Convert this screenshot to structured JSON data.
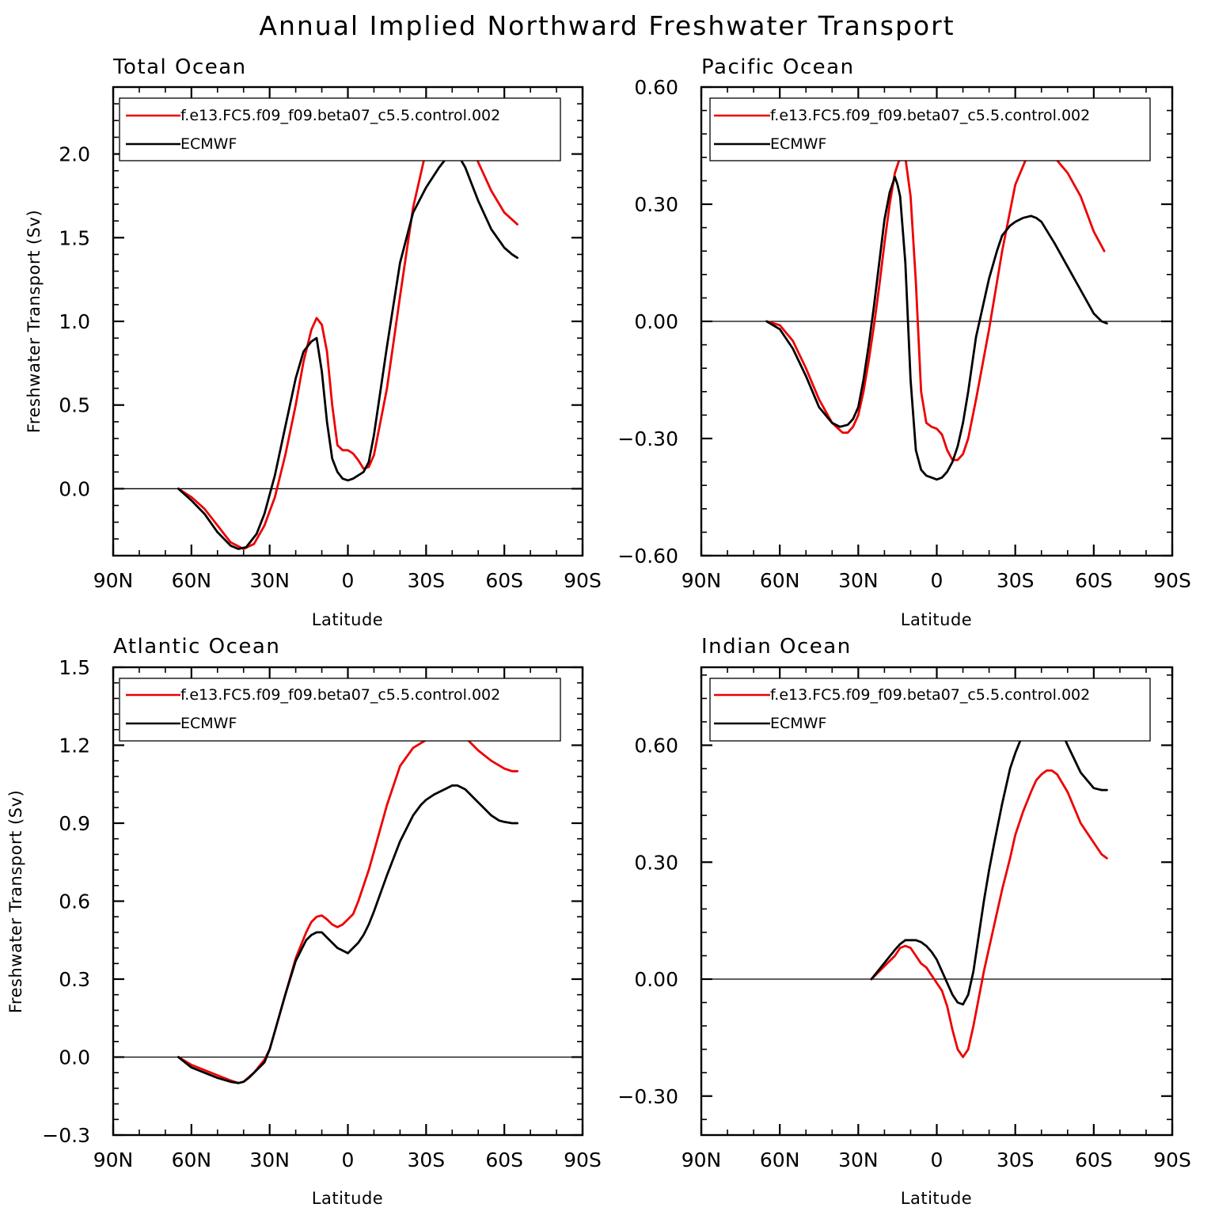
{
  "title": "Annual Implied Northward Freshwater Transport",
  "series_colors": {
    "model": "#ee0000",
    "obs": "#000000"
  },
  "chart_data": [
    {
      "type": "line",
      "title": "Total Ocean",
      "xlabel": "Latitude",
      "ylabel": "Freshwater Transport (Sv)",
      "xlim": [
        90,
        -90
      ],
      "ylim": [
        -0.4,
        2.4
      ],
      "x_ticks": [
        90,
        60,
        30,
        0,
        -30,
        -60,
        -90
      ],
      "x_tick_labels": [
        "90N",
        "60N",
        "30N",
        "0",
        "30S",
        "60S",
        "90S"
      ],
      "y_ticks": [
        0.0,
        0.5,
        1.0,
        1.5,
        2.0
      ],
      "y_tick_labels": [
        "0.0",
        "0.5",
        "1.0",
        "1.5",
        "2.0"
      ],
      "legend_placement": "top",
      "series": [
        {
          "name": "f.e13.FC5.f09_f09.beta07_c5.5.control.002",
          "color": "#ee0000",
          "x": [
            65,
            60,
            55,
            50,
            45,
            40,
            36,
            32,
            28,
            24,
            20,
            17,
            14,
            12,
            10,
            8,
            6,
            4,
            2,
            0,
            -2,
            -4,
            -6,
            -8,
            -10,
            -15,
            -20,
            -25,
            -30,
            -35,
            -38,
            -40,
            -43,
            -46,
            -50,
            -55,
            -60,
            -65
          ],
          "y": [
            0.0,
            -0.05,
            -0.12,
            -0.22,
            -0.32,
            -0.36,
            -0.33,
            -0.22,
            -0.05,
            0.2,
            0.5,
            0.76,
            0.95,
            1.02,
            0.98,
            0.82,
            0.5,
            0.26,
            0.23,
            0.23,
            0.21,
            0.17,
            0.12,
            0.13,
            0.2,
            0.6,
            1.15,
            1.68,
            2.02,
            2.2,
            2.25,
            2.26,
            2.22,
            2.1,
            1.95,
            1.78,
            1.65,
            1.58
          ]
        },
        {
          "name": "ECMWF",
          "color": "#000000",
          "x": [
            65,
            60,
            55,
            50,
            45,
            42,
            39,
            35,
            32,
            28,
            24,
            20,
            17,
            14,
            12,
            10,
            8,
            6,
            4,
            2,
            0,
            -2,
            -4,
            -6,
            -8,
            -10,
            -15,
            -20,
            -25,
            -30,
            -35,
            -38,
            -40,
            -42,
            -45,
            -50,
            -55,
            -60,
            -63,
            -65
          ],
          "y": [
            0.0,
            -0.07,
            -0.15,
            -0.26,
            -0.34,
            -0.36,
            -0.35,
            -0.27,
            -0.15,
            0.08,
            0.37,
            0.66,
            0.82,
            0.88,
            0.9,
            0.7,
            0.4,
            0.18,
            0.1,
            0.06,
            0.05,
            0.06,
            0.08,
            0.1,
            0.16,
            0.32,
            0.85,
            1.35,
            1.65,
            1.8,
            1.92,
            1.98,
            2.01,
            2.0,
            1.92,
            1.72,
            1.55,
            1.44,
            1.4,
            1.38
          ]
        }
      ]
    },
    {
      "type": "line",
      "title": "Pacific Ocean",
      "xlabel": "Latitude",
      "ylabel": "",
      "xlim": [
        90,
        -90
      ],
      "ylim": [
        -0.6,
        0.6
      ],
      "x_ticks": [
        90,
        60,
        30,
        0,
        -30,
        -60,
        -90
      ],
      "x_tick_labels": [
        "90N",
        "60N",
        "30N",
        "0",
        "30S",
        "60S",
        "90S"
      ],
      "y_ticks": [
        -0.6,
        -0.3,
        0.0,
        0.3,
        0.6
      ],
      "y_tick_labels": [
        "−0.60",
        "−0.30",
        "0.00",
        "0.30",
        "0.60"
      ],
      "legend_placement": "top",
      "series": [
        {
          "name": "f.e13.FC5.f09_f09.beta07_c5.5.control.002",
          "color": "#ee0000",
          "x": [
            65,
            60,
            55,
            50,
            45,
            40,
            36,
            34,
            32,
            30,
            28,
            26,
            24,
            22,
            20,
            18,
            16,
            14,
            13,
            12,
            10,
            8,
            6,
            4,
            2,
            0,
            -2,
            -4,
            -6,
            -8,
            -10,
            -12,
            -15,
            -20,
            -25,
            -30,
            -35,
            -38,
            -40,
            -45,
            -50,
            -55,
            -60,
            -64
          ],
          "y": [
            0.0,
            -0.01,
            -0.05,
            -0.12,
            -0.2,
            -0.26,
            -0.285,
            -0.285,
            -0.27,
            -0.24,
            -0.18,
            -0.1,
            -0.01,
            0.09,
            0.2,
            0.3,
            0.38,
            0.42,
            0.425,
            0.42,
            0.32,
            0.1,
            -0.18,
            -0.26,
            -0.27,
            -0.275,
            -0.29,
            -0.33,
            -0.355,
            -0.355,
            -0.34,
            -0.3,
            -0.2,
            -0.02,
            0.18,
            0.35,
            0.43,
            0.45,
            0.445,
            0.42,
            0.38,
            0.32,
            0.23,
            0.18
          ]
        },
        {
          "name": "ECMWF",
          "color": "#000000",
          "x": [
            65,
            60,
            55,
            50,
            45,
            40,
            37,
            34,
            32,
            30,
            28,
            26,
            24,
            22,
            20,
            18,
            16,
            15,
            14,
            12,
            10,
            8,
            6,
            4,
            2,
            0,
            -2,
            -4,
            -6,
            -8,
            -10,
            -12,
            -15,
            -20,
            -23,
            -25,
            -28,
            -30,
            -33,
            -36,
            -38,
            -40,
            -45,
            -50,
            -55,
            -60,
            -63,
            -65
          ],
          "y": [
            0.0,
            -0.02,
            -0.07,
            -0.14,
            -0.22,
            -0.26,
            -0.27,
            -0.265,
            -0.25,
            -0.22,
            -0.15,
            -0.06,
            0.04,
            0.15,
            0.26,
            0.33,
            0.37,
            0.35,
            0.32,
            0.15,
            -0.15,
            -0.33,
            -0.38,
            -0.395,
            -0.4,
            -0.405,
            -0.4,
            -0.385,
            -0.36,
            -0.32,
            -0.26,
            -0.18,
            -0.04,
            0.11,
            0.18,
            0.22,
            0.245,
            0.255,
            0.265,
            0.27,
            0.265,
            0.255,
            0.2,
            0.14,
            0.08,
            0.02,
            0.0,
            -0.005
          ]
        }
      ]
    },
    {
      "type": "line",
      "title": "Atlantic Ocean",
      "xlabel": "Latitude",
      "ylabel": "Freshwater Transport (Sv)",
      "xlim": [
        90,
        -90
      ],
      "ylim": [
        -0.3,
        1.5
      ],
      "x_ticks": [
        90,
        60,
        30,
        0,
        -30,
        -60,
        -90
      ],
      "x_tick_labels": [
        "90N",
        "60N",
        "30N",
        "0",
        "30S",
        "60S",
        "90S"
      ],
      "y_ticks": [
        -0.3,
        0.0,
        0.3,
        0.6,
        0.9,
        1.2,
        1.5
      ],
      "y_tick_labels": [
        "−0.3",
        "0.0",
        "0.3",
        "0.6",
        "0.9",
        "1.2",
        "1.5"
      ],
      "legend_placement": "top",
      "series": [
        {
          "name": "f.e13.FC5.f09_f09.beta07_c5.5.control.002",
          "color": "#ee0000",
          "x": [
            65,
            60,
            55,
            50,
            45,
            42,
            40,
            36,
            32,
            30,
            28,
            24,
            20,
            16,
            14,
            12,
            10,
            8,
            6,
            4,
            2,
            0,
            -2,
            -4,
            -6,
            -8,
            -10,
            -15,
            -20,
            -25,
            -30,
            -33,
            -36,
            -38,
            -40,
            -43,
            -46,
            -50,
            -55,
            -60,
            -63,
            -65
          ],
          "y": [
            0.0,
            -0.03,
            -0.05,
            -0.07,
            -0.09,
            -0.1,
            -0.095,
            -0.06,
            -0.01,
            0.03,
            0.1,
            0.24,
            0.38,
            0.48,
            0.52,
            0.54,
            0.545,
            0.53,
            0.51,
            0.5,
            0.51,
            0.53,
            0.55,
            0.6,
            0.66,
            0.72,
            0.79,
            0.97,
            1.12,
            1.19,
            1.22,
            1.24,
            1.255,
            1.265,
            1.265,
            1.25,
            1.22,
            1.18,
            1.14,
            1.11,
            1.1,
            1.1
          ]
        },
        {
          "name": "ECMWF",
          "color": "#000000",
          "x": [
            65,
            60,
            55,
            50,
            45,
            42,
            40,
            38,
            36,
            32,
            30,
            28,
            24,
            20,
            16,
            14,
            12,
            10,
            8,
            6,
            4,
            2,
            0,
            -2,
            -4,
            -6,
            -8,
            -10,
            -15,
            -20,
            -25,
            -28,
            -30,
            -33,
            -36,
            -38,
            -40,
            -42,
            -45,
            -50,
            -55,
            -58,
            -60,
            -63,
            -65
          ],
          "y": [
            0.0,
            -0.04,
            -0.06,
            -0.08,
            -0.095,
            -0.1,
            -0.095,
            -0.08,
            -0.06,
            -0.02,
            0.03,
            0.1,
            0.24,
            0.37,
            0.45,
            0.47,
            0.48,
            0.48,
            0.46,
            0.44,
            0.42,
            0.41,
            0.4,
            0.42,
            0.44,
            0.47,
            0.51,
            0.56,
            0.7,
            0.83,
            0.93,
            0.97,
            0.99,
            1.01,
            1.025,
            1.035,
            1.045,
            1.045,
            1.03,
            0.98,
            0.93,
            0.91,
            0.905,
            0.9,
            0.9
          ]
        }
      ]
    },
    {
      "type": "line",
      "title": "Indian Ocean",
      "xlabel": "Latitude",
      "ylabel": "",
      "xlim": [
        90,
        -90
      ],
      "ylim": [
        -0.4,
        0.8
      ],
      "x_ticks": [
        90,
        60,
        30,
        0,
        -30,
        -60,
        -90
      ],
      "x_tick_labels": [
        "90N",
        "60N",
        "30N",
        "0",
        "30S",
        "60S",
        "90S"
      ],
      "y_ticks": [
        -0.3,
        0.0,
        0.3,
        0.6
      ],
      "y_tick_labels": [
        "−0.30",
        "0.00",
        "0.30",
        "0.60"
      ],
      "legend_placement": "top",
      "series": [
        {
          "name": "f.e13.FC5.f09_f09.beta07_c5.5.control.002",
          "color": "#ee0000",
          "x": [
            25,
            22,
            19,
            16,
            14,
            12,
            10,
            8,
            6,
            4,
            2,
            0,
            -2,
            -4,
            -6,
            -8,
            -10,
            -12,
            -14,
            -16,
            -18,
            -20,
            -22,
            -25,
            -28,
            -30,
            -33,
            -36,
            -38,
            -40,
            -42,
            -44,
            -46,
            -50,
            -55,
            -60,
            -63,
            -65
          ],
          "y": [
            0.0,
            0.02,
            0.04,
            0.06,
            0.08,
            0.085,
            0.08,
            0.06,
            0.04,
            0.03,
            0.01,
            -0.01,
            -0.03,
            -0.07,
            -0.13,
            -0.18,
            -0.2,
            -0.18,
            -0.12,
            -0.05,
            0.02,
            0.08,
            0.14,
            0.23,
            0.31,
            0.37,
            0.43,
            0.48,
            0.51,
            0.525,
            0.535,
            0.535,
            0.525,
            0.48,
            0.4,
            0.35,
            0.32,
            0.31
          ]
        },
        {
          "name": "ECMWF",
          "color": "#000000",
          "x": [
            25,
            22,
            19,
            16,
            14,
            12,
            10,
            8,
            6,
            4,
            2,
            0,
            -2,
            -4,
            -6,
            -8,
            -10,
            -12,
            -14,
            -16,
            -18,
            -20,
            -22,
            -25,
            -28,
            -30,
            -33,
            -36,
            -38,
            -40,
            -42,
            -44,
            -46,
            -50,
            -55,
            -60,
            -63,
            -65
          ],
          "y": [
            0.0,
            0.025,
            0.05,
            0.075,
            0.09,
            0.1,
            0.1,
            0.1,
            0.095,
            0.085,
            0.07,
            0.05,
            0.02,
            -0.01,
            -0.04,
            -0.06,
            -0.065,
            -0.04,
            0.02,
            0.11,
            0.2,
            0.28,
            0.35,
            0.45,
            0.54,
            0.58,
            0.63,
            0.67,
            0.69,
            0.7,
            0.7,
            0.69,
            0.66,
            0.6,
            0.53,
            0.49,
            0.485,
            0.485
          ]
        }
      ]
    }
  ]
}
